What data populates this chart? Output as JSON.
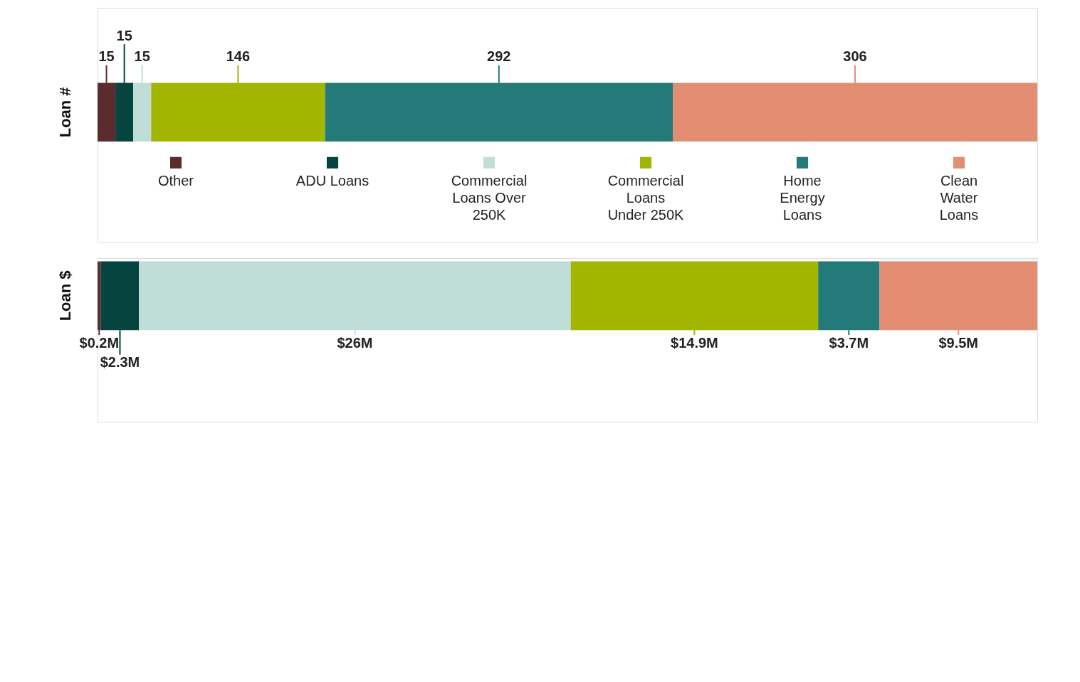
{
  "chart_data": [
    {
      "type": "bar",
      "orientation": "horizontal",
      "stacked": true,
      "data_labels": true,
      "legend": "bottom",
      "categories": [
        "Loan #"
      ],
      "series": [
        {
          "name": "Other",
          "color": "#5c2b2e",
          "values": [
            15
          ]
        },
        {
          "name": "ADU Loans",
          "color": "#05443f",
          "values": [
            15
          ]
        },
        {
          "name": "Commercial Loans Over 250K",
          "color": "#c0ddd8",
          "values": [
            15
          ]
        },
        {
          "name": "Commercial Loans Under 250K",
          "color": "#a2b500",
          "values": [
            146
          ]
        },
        {
          "name": "Home Energy Loans",
          "color": "#237a78",
          "values": [
            292
          ]
        },
        {
          "name": "Clean Water Loans",
          "color": "#e38d72",
          "values": [
            306
          ]
        }
      ]
    },
    {
      "type": "bar",
      "orientation": "horizontal",
      "stacked": true,
      "categories": [
        "Loan $"
      ],
      "series": [
        {
          "color": "#5c2b2e",
          "values": [
            0.2
          ],
          "value_labels": [
            "$0.2M"
          ]
        },
        {
          "color": "#05443f",
          "values": [
            2.3
          ],
          "value_labels": [
            "$2.3M"
          ]
        },
        {
          "color": "#c0ddd8",
          "values": [
            26
          ],
          "value_labels": [
            "$26M"
          ]
        },
        {
          "color": "#a2b500",
          "values": [
            14.9
          ],
          "value_labels": [
            "$14.9M"
          ]
        },
        {
          "color": "#237a78",
          "values": [
            3.7
          ],
          "value_labels": [
            "$3.7M"
          ]
        },
        {
          "color": "#e38d72",
          "values": [
            9.5
          ],
          "value_labels": [
            "$9.5M"
          ]
        }
      ]
    }
  ]
}
